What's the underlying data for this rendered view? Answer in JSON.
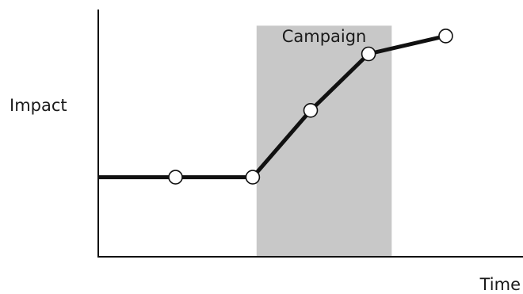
{
  "chart_data": {
    "type": "line",
    "xlabel": "Time",
    "ylabel": "Impact",
    "xlim": [
      0,
      11
    ],
    "ylim": [
      0,
      10
    ],
    "grid": false,
    "legend": "none",
    "series": [
      {
        "x": [
          0,
          2,
          4,
          5.5,
          7,
          9
        ],
        "y": [
          3.1,
          3.1,
          3.1,
          5.7,
          7.9,
          8.6
        ],
        "markers": [
          false,
          true,
          true,
          true,
          true,
          true
        ],
        "color": "#111111"
      }
    ],
    "annotations": [
      {
        "type": "shaded-span",
        "label": "Campaign",
        "x_start": 4.1,
        "x_end": 7.6,
        "y_start": 0,
        "y_end": 9.0,
        "color": "#c8c8c8"
      }
    ]
  }
}
